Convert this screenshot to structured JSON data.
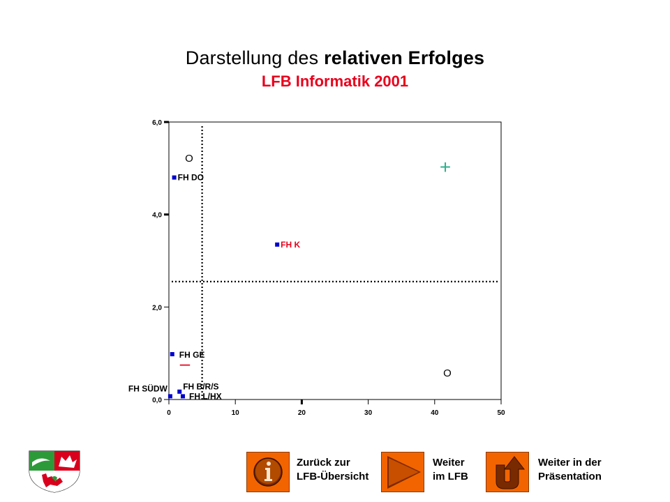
{
  "header": {
    "title_prefix": "Darstellung des ",
    "title_bold": "relativen Erfolges",
    "subtitle": "LFB Informatik  2001"
  },
  "colors": {
    "subtitle": "#e8001c",
    "point": "#0000cc",
    "highlight_label": "#e8001c",
    "plus": "#2fb08a",
    "minus": "#e8001c",
    "button": "#f26400"
  },
  "chart_data": {
    "type": "scatter",
    "title": "",
    "xlabel": "",
    "ylabel": "",
    "xlim": [
      0,
      50
    ],
    "ylim": [
      0,
      6
    ],
    "x_ticks": [
      "0",
      "10",
      "20",
      "30",
      "40",
      "50"
    ],
    "y_ticks": [
      "0,0",
      "2,0",
      "4,0",
      "6,0"
    ],
    "grid": false,
    "reference_lines": {
      "x": 5,
      "y": 2.55
    },
    "points": [
      {
        "label": "FH DO",
        "x": 0.8,
        "y": 4.8,
        "highlight": false
      },
      {
        "label": "FH K",
        "x": 16.3,
        "y": 3.35,
        "highlight": true
      },
      {
        "label": "FH GE",
        "x": 0.5,
        "y": 0.98,
        "highlight": false
      },
      {
        "label": "FH SÜDW",
        "x": 0.2,
        "y": 0.07,
        "highlight": false
      },
      {
        "label": "FH B/R/S",
        "x": 1.6,
        "y": 0.17,
        "highlight": false
      },
      {
        "label": "FH L/HX",
        "x": 2.1,
        "y": 0.07,
        "highlight": false
      }
    ],
    "quadrant_markers": [
      {
        "text": "O",
        "quadrant": "top-left"
      },
      {
        "text": "+",
        "quadrant": "top-right"
      },
      {
        "text": "–",
        "quadrant": "bottom-left"
      },
      {
        "text": "O",
        "quadrant": "bottom-right"
      }
    ]
  },
  "nav": {
    "back_line1": "Zurück zur",
    "back_line2": "LFB-Übersicht",
    "next_line1": "Weiter",
    "next_line2": "im LFB",
    "continue_line1": "Weiter in der",
    "continue_line2": "Präsentation",
    "back_icon": "info-icon",
    "next_icon": "play-arrow-icon",
    "continue_icon": "u-turn-icon"
  }
}
